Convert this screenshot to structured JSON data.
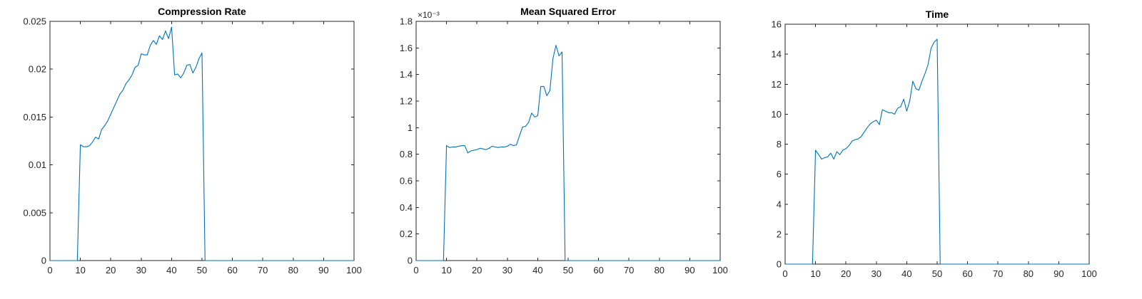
{
  "chart_data": [
    {
      "type": "line",
      "title": "Compression Rate",
      "xlim": [
        0,
        100
      ],
      "ylim": [
        0,
        0.025
      ],
      "xticks": [
        "0",
        "10",
        "20",
        "30",
        "40",
        "50",
        "60",
        "70",
        "80",
        "90",
        "100"
      ],
      "yticks": [
        "0",
        "0.005",
        "0.01",
        "0.015",
        "0.02",
        "0.025"
      ],
      "x": [
        0,
        9,
        10,
        11,
        12,
        13,
        14,
        15,
        16,
        17,
        18,
        19,
        20,
        21,
        22,
        23,
        24,
        25,
        26,
        27,
        28,
        29,
        30,
        31,
        32,
        33,
        34,
        35,
        36,
        37,
        38,
        39,
        40,
        41,
        42,
        43,
        44,
        45,
        46,
        47,
        48,
        49,
        50,
        51,
        100
      ],
      "values": [
        0,
        0,
        0.0121,
        0.0119,
        0.0119,
        0.012,
        0.0124,
        0.0129,
        0.0127,
        0.0137,
        0.0141,
        0.0146,
        0.0153,
        0.016,
        0.0167,
        0.0174,
        0.0178,
        0.0185,
        0.0189,
        0.0194,
        0.0202,
        0.0204,
        0.0216,
        0.0215,
        0.0215,
        0.0225,
        0.023,
        0.0226,
        0.0235,
        0.0231,
        0.024,
        0.0232,
        0.0244,
        0.0194,
        0.0195,
        0.0191,
        0.0196,
        0.0204,
        0.0205,
        0.0196,
        0.0202,
        0.0211,
        0.0217,
        0,
        0
      ]
    },
    {
      "type": "line",
      "title": "Mean Squared Error",
      "xlim": [
        0,
        100
      ],
      "ylim": [
        0,
        1.8
      ],
      "y_exponent": "×10⁻³",
      "xticks": [
        "0",
        "10",
        "20",
        "30",
        "40",
        "50",
        "60",
        "70",
        "80",
        "90",
        "100"
      ],
      "yticks": [
        "0",
        "0.2",
        "0.4",
        "0.6",
        "0.8",
        "1",
        "1.2",
        "1.4",
        "1.6",
        "1.8"
      ],
      "x": [
        0,
        9,
        10,
        11,
        12,
        13,
        14,
        15,
        16,
        17,
        18,
        19,
        20,
        21,
        22,
        23,
        24,
        25,
        26,
        27,
        28,
        29,
        30,
        31,
        32,
        33,
        34,
        35,
        36,
        37,
        38,
        39,
        40,
        41,
        42,
        43,
        44,
        45,
        46,
        47,
        48,
        49,
        50,
        51,
        100
      ],
      "values": [
        0,
        0,
        0.865,
        0.85,
        0.855,
        0.855,
        0.86,
        0.865,
        0.865,
        0.81,
        0.825,
        0.83,
        0.835,
        0.845,
        0.84,
        0.835,
        0.845,
        0.86,
        0.855,
        0.85,
        0.855,
        0.855,
        0.86,
        0.875,
        0.865,
        0.87,
        0.94,
        1.005,
        1.01,
        1.04,
        1.11,
        1.08,
        1.09,
        1.31,
        1.31,
        1.24,
        1.28,
        1.52,
        1.62,
        1.54,
        1.57,
        0,
        0,
        0,
        0
      ]
    },
    {
      "type": "line",
      "title": "Time",
      "xlim": [
        0,
        100
      ],
      "ylim": [
        0,
        16
      ],
      "xticks": [
        "0",
        "10",
        "20",
        "30",
        "40",
        "50",
        "60",
        "70",
        "80",
        "90",
        "100"
      ],
      "yticks": [
        "0",
        "2",
        "4",
        "6",
        "8",
        "10",
        "12",
        "14",
        "16"
      ],
      "x": [
        0,
        9,
        10,
        11,
        12,
        13,
        14,
        15,
        16,
        17,
        18,
        19,
        20,
        21,
        22,
        23,
        24,
        25,
        26,
        27,
        28,
        29,
        30,
        31,
        32,
        33,
        34,
        35,
        36,
        37,
        38,
        39,
        40,
        41,
        42,
        43,
        44,
        45,
        46,
        47,
        48,
        49,
        50,
        51,
        100
      ],
      "values": [
        0,
        0,
        7.6,
        7.3,
        7.0,
        7.1,
        7.15,
        7.4,
        7.0,
        7.5,
        7.3,
        7.6,
        7.7,
        7.9,
        8.2,
        8.3,
        8.35,
        8.5,
        8.8,
        9.1,
        9.35,
        9.5,
        9.6,
        9.3,
        10.3,
        10.2,
        10.1,
        10.1,
        10.0,
        10.4,
        10.5,
        11.0,
        10.2,
        10.9,
        12.2,
        11.7,
        11.6,
        12.2,
        12.7,
        13.3,
        14.4,
        14.8,
        15.0,
        0,
        0
      ]
    }
  ]
}
